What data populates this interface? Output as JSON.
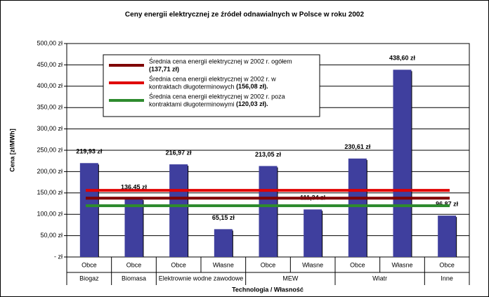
{
  "chart_data": {
    "type": "bar",
    "title": "Ceny energii elektrycznej ze źródeł odnawialnych w Polsce w roku 2002",
    "y_label": "Cena [zł/MWh]",
    "x_label": "Technologia / Własność",
    "categories": [
      "Obce",
      "Obce",
      "Obce",
      "Własne",
      "Obce",
      "Własne",
      "Obce",
      "Własne",
      "Obce"
    ],
    "groups": [
      {
        "label": "Biogaz",
        "start": 0,
        "count": 1
      },
      {
        "label": "Biomasa",
        "start": 1,
        "count": 1
      },
      {
        "label": "Elektrownie wodne zawodowe",
        "start": 2,
        "count": 2
      },
      {
        "label": "MEW",
        "start": 4,
        "count": 2
      },
      {
        "label": "Wiatr",
        "start": 6,
        "count": 2
      },
      {
        "label": "Inne",
        "start": 8,
        "count": 1
      }
    ],
    "values": [
      219.93,
      136.45,
      216.97,
      65.15,
      213.05,
      111.34,
      230.61,
      438.6,
      96.87
    ],
    "value_labels": [
      "219,93 zł",
      "136,45 zł",
      "216,97 zł",
      "65,15 zł",
      "213,05 zł",
      "111,34 zł",
      "230,61 zł",
      "438,60 zł",
      "96,87 zł"
    ],
    "color": "#3f3f9e",
    "ylim": [
      0,
      500
    ],
    "yticks": [
      {
        "value": 0,
        "label": "- zł"
      },
      {
        "value": 50,
        "label": "50,00 zł"
      },
      {
        "value": 100,
        "label": "100,00 zł"
      },
      {
        "value": 150,
        "label": "150,00 zł"
      },
      {
        "value": 200,
        "label": "200,00 zł"
      },
      {
        "value": 250,
        "label": "250,00 zł"
      },
      {
        "value": 300,
        "label": "300,00 zł"
      },
      {
        "value": 350,
        "label": "350,00 zł"
      },
      {
        "value": 400,
        "label": "400,00 zł"
      },
      {
        "value": 450,
        "label": "450,00 zł"
      },
      {
        "value": 500,
        "label": "500,00 zł"
      }
    ],
    "grid": true,
    "reference_lines": [
      {
        "name_lines": [
          "Średnia cena energii elektrycznej w 2002 r. ogółem"
        ],
        "value": 137.71,
        "value_label": "(137,71 zł)",
        "color": "#7f0000"
      },
      {
        "name_lines": [
          "Średnia cena energii elektrycznej w 2002 r. w",
          "kontraktach długoterminowych"
        ],
        "value": 156.08,
        "value_label": "(156,08 zł).",
        "color": "#e00000"
      },
      {
        "name_lines": [
          "Średnia cena energii elektrycznej w 2002 r. poza",
          "kontraktami długoterminowymi"
        ],
        "value": 120.03,
        "value_label": "(120,03 zł).",
        "color": "#2e8b2e"
      }
    ]
  }
}
